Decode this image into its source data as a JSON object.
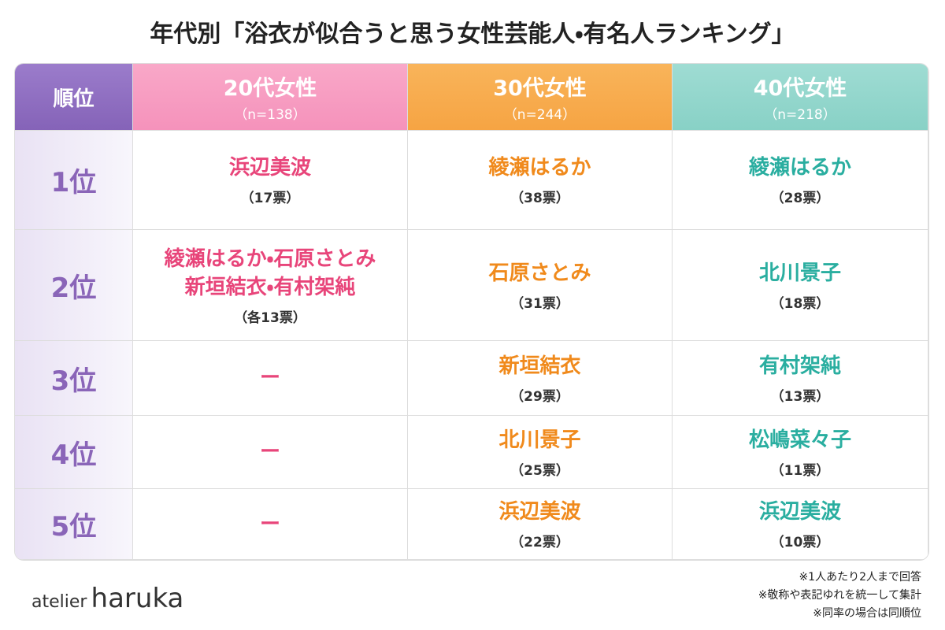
{
  "title": "年代別「浴衣が似合うと思う女性芸能人・有名人ランキング」",
  "table": {
    "rank_header": "順位",
    "columns": [
      {
        "label": "20代女性",
        "n": "（n=138）"
      },
      {
        "label": "30代女性",
        "n": "（n=244）"
      },
      {
        "label": "40代女性",
        "n": "（n=218）"
      }
    ],
    "rows": [
      {
        "rank": "1位",
        "cells": [
          {
            "names": [
              "浜辺美波"
            ],
            "votes": "（17票）"
          },
          {
            "names": [
              "綾瀬はるか"
            ],
            "votes": "（38票）"
          },
          {
            "names": [
              "綾瀬はるか"
            ],
            "votes": "（28票）"
          }
        ]
      },
      {
        "rank": "2位",
        "cells": [
          {
            "names": [
              "綾瀬はるか・石原さとみ",
              "新垣結衣・有村架純"
            ],
            "votes": "（各13票）"
          },
          {
            "names": [
              "石原さとみ"
            ],
            "votes": "（31票）"
          },
          {
            "names": [
              "北川景子"
            ],
            "votes": "（18票）"
          }
        ]
      },
      {
        "rank": "3位",
        "cells": [
          {
            "names": [
              "ー"
            ]
          },
          {
            "names": [
              "新垣結衣"
            ],
            "votes": "（29票）"
          },
          {
            "names": [
              "有村架純"
            ],
            "votes": "（13票）"
          }
        ]
      },
      {
        "rank": "4位",
        "cells": [
          {
            "names": [
              "ー"
            ]
          },
          {
            "names": [
              "北川景子"
            ],
            "votes": "（25票）"
          },
          {
            "names": [
              "松嶋菜々子"
            ],
            "votes": "（11票）"
          }
        ]
      },
      {
        "rank": "5位",
        "cells": [
          {
            "names": [
              "ー"
            ]
          },
          {
            "names": [
              "浜辺美波"
            ],
            "votes": "（22票）"
          },
          {
            "names": [
              "浜辺美波"
            ],
            "votes": "（10票）"
          }
        ]
      }
    ]
  },
  "notes": [
    "※1人あたり2人まで回答",
    "※敬称や表記ゆれを統一して集計",
    "※同率の場合は同順位"
  ],
  "brand": {
    "prefix": "atelier",
    "name": "haruka"
  }
}
